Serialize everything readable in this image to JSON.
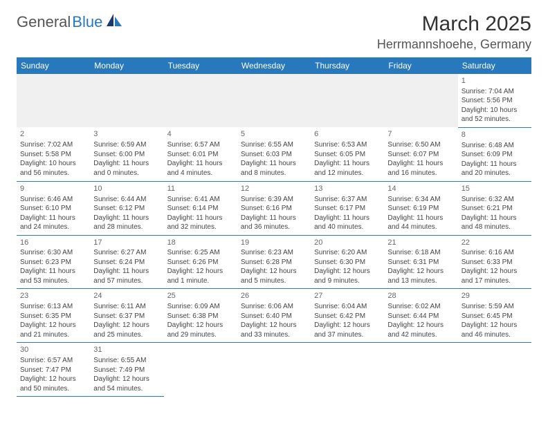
{
  "logo": {
    "general": "General",
    "blue": "Blue"
  },
  "title": "March 2025",
  "location": "Herrmannshoehe, Germany",
  "colors": {
    "header_bg": "#2878bd",
    "header_text": "#ffffff",
    "rule": "#2878bd",
    "text": "#444444",
    "blank_bg": "#f0f0f0"
  },
  "weekdays": [
    "Sunday",
    "Monday",
    "Tuesday",
    "Wednesday",
    "Thursday",
    "Friday",
    "Saturday"
  ],
  "days": {
    "1": {
      "sunrise": "7:04 AM",
      "sunset": "5:56 PM",
      "daylight": "10 hours and 52 minutes."
    },
    "2": {
      "sunrise": "7:02 AM",
      "sunset": "5:58 PM",
      "daylight": "10 hours and 56 minutes."
    },
    "3": {
      "sunrise": "6:59 AM",
      "sunset": "6:00 PM",
      "daylight": "11 hours and 0 minutes."
    },
    "4": {
      "sunrise": "6:57 AM",
      "sunset": "6:01 PM",
      "daylight": "11 hours and 4 minutes."
    },
    "5": {
      "sunrise": "6:55 AM",
      "sunset": "6:03 PM",
      "daylight": "11 hours and 8 minutes."
    },
    "6": {
      "sunrise": "6:53 AM",
      "sunset": "6:05 PM",
      "daylight": "11 hours and 12 minutes."
    },
    "7": {
      "sunrise": "6:50 AM",
      "sunset": "6:07 PM",
      "daylight": "11 hours and 16 minutes."
    },
    "8": {
      "sunrise": "6:48 AM",
      "sunset": "6:09 PM",
      "daylight": "11 hours and 20 minutes."
    },
    "9": {
      "sunrise": "6:46 AM",
      "sunset": "6:10 PM",
      "daylight": "11 hours and 24 minutes."
    },
    "10": {
      "sunrise": "6:44 AM",
      "sunset": "6:12 PM",
      "daylight": "11 hours and 28 minutes."
    },
    "11": {
      "sunrise": "6:41 AM",
      "sunset": "6:14 PM",
      "daylight": "11 hours and 32 minutes."
    },
    "12": {
      "sunrise": "6:39 AM",
      "sunset": "6:16 PM",
      "daylight": "11 hours and 36 minutes."
    },
    "13": {
      "sunrise": "6:37 AM",
      "sunset": "6:17 PM",
      "daylight": "11 hours and 40 minutes."
    },
    "14": {
      "sunrise": "6:34 AM",
      "sunset": "6:19 PM",
      "daylight": "11 hours and 44 minutes."
    },
    "15": {
      "sunrise": "6:32 AM",
      "sunset": "6:21 PM",
      "daylight": "11 hours and 48 minutes."
    },
    "16": {
      "sunrise": "6:30 AM",
      "sunset": "6:23 PM",
      "daylight": "11 hours and 53 minutes."
    },
    "17": {
      "sunrise": "6:27 AM",
      "sunset": "6:24 PM",
      "daylight": "11 hours and 57 minutes."
    },
    "18": {
      "sunrise": "6:25 AM",
      "sunset": "6:26 PM",
      "daylight": "12 hours and 1 minute."
    },
    "19": {
      "sunrise": "6:23 AM",
      "sunset": "6:28 PM",
      "daylight": "12 hours and 5 minutes."
    },
    "20": {
      "sunrise": "6:20 AM",
      "sunset": "6:30 PM",
      "daylight": "12 hours and 9 minutes."
    },
    "21": {
      "sunrise": "6:18 AM",
      "sunset": "6:31 PM",
      "daylight": "12 hours and 13 minutes."
    },
    "22": {
      "sunrise": "6:16 AM",
      "sunset": "6:33 PM",
      "daylight": "12 hours and 17 minutes."
    },
    "23": {
      "sunrise": "6:13 AM",
      "sunset": "6:35 PM",
      "daylight": "12 hours and 21 minutes."
    },
    "24": {
      "sunrise": "6:11 AM",
      "sunset": "6:37 PM",
      "daylight": "12 hours and 25 minutes."
    },
    "25": {
      "sunrise": "6:09 AM",
      "sunset": "6:38 PM",
      "daylight": "12 hours and 29 minutes."
    },
    "26": {
      "sunrise": "6:06 AM",
      "sunset": "6:40 PM",
      "daylight": "12 hours and 33 minutes."
    },
    "27": {
      "sunrise": "6:04 AM",
      "sunset": "6:42 PM",
      "daylight": "12 hours and 37 minutes."
    },
    "28": {
      "sunrise": "6:02 AM",
      "sunset": "6:44 PM",
      "daylight": "12 hours and 42 minutes."
    },
    "29": {
      "sunrise": "5:59 AM",
      "sunset": "6:45 PM",
      "daylight": "12 hours and 46 minutes."
    },
    "30": {
      "sunrise": "6:57 AM",
      "sunset": "7:47 PM",
      "daylight": "12 hours and 50 minutes."
    },
    "31": {
      "sunrise": "6:55 AM",
      "sunset": "7:49 PM",
      "daylight": "12 hours and 54 minutes."
    }
  },
  "labels": {
    "sunrise": "Sunrise:",
    "sunset": "Sunset:",
    "daylight": "Daylight:"
  },
  "grid": [
    [
      null,
      null,
      null,
      null,
      null,
      null,
      "1"
    ],
    [
      "2",
      "3",
      "4",
      "5",
      "6",
      "7",
      "8"
    ],
    [
      "9",
      "10",
      "11",
      "12",
      "13",
      "14",
      "15"
    ],
    [
      "16",
      "17",
      "18",
      "19",
      "20",
      "21",
      "22"
    ],
    [
      "23",
      "24",
      "25",
      "26",
      "27",
      "28",
      "29"
    ],
    [
      "30",
      "31",
      null,
      null,
      null,
      null,
      null
    ]
  ]
}
